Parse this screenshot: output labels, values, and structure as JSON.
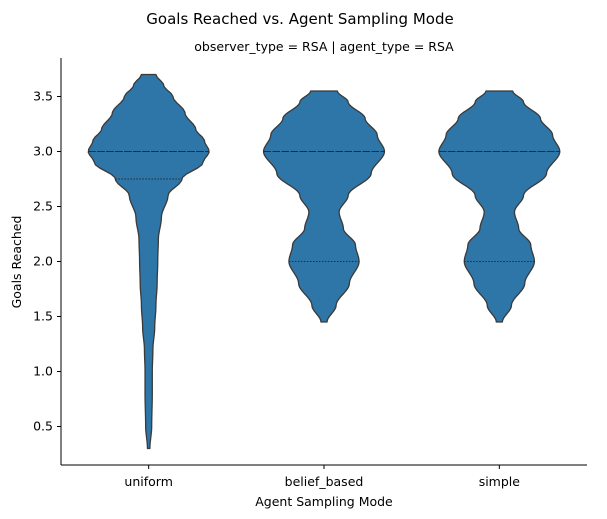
{
  "chart_data": {
    "type": "violin",
    "suptitle": "Goals Reached vs. Agent Sampling Mode",
    "title": "observer_type = RSA | agent_type = RSA",
    "xlabel": "Agent Sampling Mode",
    "ylabel": "Goals Reached",
    "categories": [
      "uniform",
      "belief_based",
      "simple"
    ],
    "ylim": [
      0.15,
      3.85
    ],
    "yticks": [
      0.5,
      1.0,
      1.5,
      2.0,
      2.5,
      3.0,
      3.5
    ],
    "ytick_labels": [
      "0.5",
      "1.0",
      "1.5",
      "2.0",
      "2.5",
      "3.0",
      "3.5"
    ],
    "fill_color": "#2e75a8",
    "edge_color": "#3a3a3a",
    "inner": "quartile",
    "violins": [
      {
        "category": "uniform",
        "min": 0.3,
        "max": 3.7,
        "quartiles": [
          2.75,
          3.0,
          3.0
        ],
        "density": [
          [
            0.3,
            0.02
          ],
          [
            0.5,
            0.05
          ],
          [
            0.8,
            0.06
          ],
          [
            1.0,
            0.06
          ],
          [
            1.2,
            0.07
          ],
          [
            1.4,
            0.1
          ],
          [
            1.6,
            0.12
          ],
          [
            1.8,
            0.14
          ],
          [
            2.0,
            0.15
          ],
          [
            2.2,
            0.16
          ],
          [
            2.4,
            0.21
          ],
          [
            2.6,
            0.32
          ],
          [
            2.75,
            0.55
          ],
          [
            2.9,
            0.9
          ],
          [
            3.0,
            1.0
          ],
          [
            3.1,
            0.92
          ],
          [
            3.2,
            0.78
          ],
          [
            3.35,
            0.6
          ],
          [
            3.5,
            0.4
          ],
          [
            3.6,
            0.25
          ],
          [
            3.7,
            0.12
          ]
        ]
      },
      {
        "category": "belief_based",
        "min": 1.45,
        "max": 3.55,
        "quartiles": [
          2.0,
          3.0,
          3.0
        ],
        "density": [
          [
            1.45,
            0.05
          ],
          [
            1.6,
            0.2
          ],
          [
            1.8,
            0.42
          ],
          [
            2.0,
            0.58
          ],
          [
            2.15,
            0.52
          ],
          [
            2.3,
            0.32
          ],
          [
            2.45,
            0.25
          ],
          [
            2.6,
            0.4
          ],
          [
            2.8,
            0.78
          ],
          [
            3.0,
            1.0
          ],
          [
            3.15,
            0.88
          ],
          [
            3.3,
            0.68
          ],
          [
            3.45,
            0.4
          ],
          [
            3.55,
            0.22
          ]
        ]
      },
      {
        "category": "simple",
        "min": 1.45,
        "max": 3.55,
        "quartiles": [
          2.0,
          3.0,
          3.0
        ],
        "density": [
          [
            1.45,
            0.05
          ],
          [
            1.6,
            0.2
          ],
          [
            1.8,
            0.42
          ],
          [
            2.0,
            0.58
          ],
          [
            2.15,
            0.52
          ],
          [
            2.3,
            0.32
          ],
          [
            2.45,
            0.25
          ],
          [
            2.6,
            0.4
          ],
          [
            2.8,
            0.78
          ],
          [
            3.0,
            1.0
          ],
          [
            3.15,
            0.88
          ],
          [
            3.3,
            0.68
          ],
          [
            3.45,
            0.4
          ],
          [
            3.55,
            0.22
          ]
        ]
      }
    ]
  }
}
